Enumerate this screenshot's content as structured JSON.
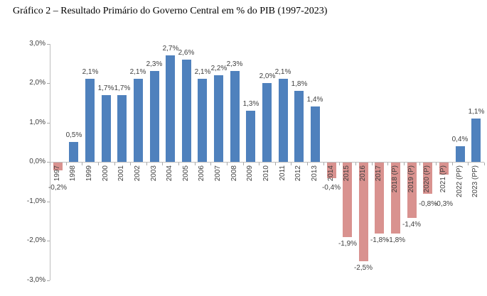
{
  "title": "Gráfico 2 – Resultado Primário do Governo Central em % do PIB (1997-2023)",
  "chart_data": {
    "type": "bar",
    "title": "Gráfico 2 – Resultado Primário do Governo Central em % do PIB (1997-2023)",
    "xlabel": "",
    "ylabel": "",
    "ylim": [
      -3.0,
      3.0
    ],
    "ytick_labels": [
      "3,0%",
      "2,0%",
      "1,0%",
      "0,0%",
      "-1,0%",
      "-2,0%",
      "-3,0%"
    ],
    "ytick_values": [
      3,
      2,
      1,
      0,
      -1,
      -2,
      -3
    ],
    "grid": false,
    "legend": null,
    "categories": [
      "1997",
      "1998",
      "1999",
      "2000",
      "2001",
      "2002",
      "2003",
      "2004",
      "2005",
      "2006",
      "2007",
      "2008",
      "2009",
      "2010",
      "2011",
      "2012",
      "2013",
      "2014",
      "2015",
      "2016",
      "2017",
      "2018 (P)",
      "2019 (P)",
      "2020 (P)",
      "2021 (P)",
      "2022 (PP)",
      "2023 (PP)"
    ],
    "values": [
      -0.2,
      0.5,
      2.1,
      1.7,
      1.7,
      2.1,
      2.3,
      2.7,
      2.6,
      2.1,
      2.2,
      2.3,
      1.3,
      2.0,
      2.1,
      1.8,
      1.4,
      -0.4,
      -1.9,
      -2.5,
      -1.8,
      -1.8,
      -1.4,
      -0.8,
      -0.3,
      0.4,
      1.1
    ],
    "value_labels": [
      "-0,2%",
      "0,5%",
      "2,1%",
      "1,7%",
      "1,7%",
      "2,1%",
      "2,3%",
      "2,7%",
      "2,6%",
      "2,1%",
      "2,2%",
      "2,3%",
      "1,3%",
      "2,0%",
      "2,1%",
      "1,8%",
      "1,4%",
      "-0,4%",
      "-1,9%",
      "-2,5%",
      "-1,8%",
      "-1,8%",
      "-1,4%",
      "-0,8%",
      "-0,3%",
      "0,4%",
      "1,1%"
    ],
    "colors": {
      "positive_bar": "#4F81BD",
      "negative_bar": "#D9928F",
      "axis_line": "#BDBDBD",
      "tick_mark": "#A9A9A9",
      "label_text": "#3F3F3F"
    }
  }
}
